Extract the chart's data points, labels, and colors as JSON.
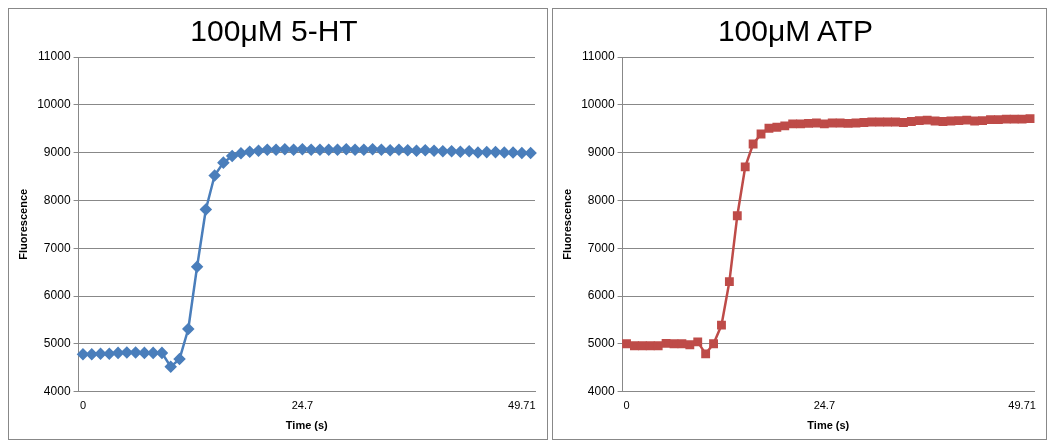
{
  "chart_data": [
    {
      "type": "line",
      "title": "100μM 5-HT",
      "xlabel": "Time (s)",
      "ylabel": "Fluorescence",
      "marker": "diamond",
      "grid": "y",
      "categories": [
        "0",
        null,
        null,
        null,
        null,
        null,
        null,
        null,
        null,
        null,
        null,
        null,
        null,
        null,
        null,
        null,
        null,
        null,
        null,
        null,
        null,
        null,
        null,
        null,
        null,
        "24.7",
        null,
        null,
        null,
        null,
        null,
        null,
        null,
        null,
        null,
        null,
        null,
        null,
        null,
        null,
        null,
        null,
        null,
        null,
        null,
        null,
        null,
        null,
        null,
        null,
        "49.71",
        null
      ],
      "series": [
        {
          "color": "#4a7ebb",
          "values": [
            4780,
            4780,
            4790,
            4790,
            4810,
            4820,
            4820,
            4810,
            4810,
            4810,
            4520,
            4680,
            5310,
            6610,
            7810,
            8520,
            8790,
            8930,
            8985,
            9020,
            9040,
            9060,
            9060,
            9070,
            9060,
            9070,
            9060,
            9060,
            9060,
            9060,
            9070,
            9060,
            9060,
            9070,
            9060,
            9050,
            9060,
            9050,
            9040,
            9050,
            9040,
            9030,
            9030,
            9020,
            9030,
            9000,
            9010,
            9010,
            9000,
            9000,
            8990,
            8990
          ]
        }
      ],
      "ylim": [
        4000,
        11000
      ],
      "yticks": [
        4000,
        5000,
        6000,
        7000,
        8000,
        9000,
        10000,
        11000
      ]
    },
    {
      "type": "line",
      "title": "100μM ATP",
      "xlabel": "Time (s)",
      "ylabel": "Fluorescence",
      "marker": "square",
      "grid": "y",
      "categories": [
        "0",
        null,
        null,
        null,
        null,
        null,
        null,
        null,
        null,
        null,
        null,
        null,
        null,
        null,
        null,
        null,
        null,
        null,
        null,
        null,
        null,
        null,
        null,
        null,
        null,
        "24.7",
        null,
        null,
        null,
        null,
        null,
        null,
        null,
        null,
        null,
        null,
        null,
        null,
        null,
        null,
        null,
        null,
        null,
        null,
        null,
        null,
        null,
        null,
        null,
        null,
        "49.71",
        null
      ],
      "series": [
        {
          "color": "#be4b48",
          "values": [
            5000,
            4960,
            4960,
            4960,
            4960,
            5010,
            5000,
            5000,
            4980,
            5040,
            4790,
            5000,
            5390,
            6300,
            7680,
            8700,
            9180,
            9390,
            9510,
            9530,
            9560,
            9600,
            9600,
            9610,
            9620,
            9600,
            9620,
            9620,
            9610,
            9620,
            9630,
            9640,
            9640,
            9640,
            9640,
            9630,
            9650,
            9670,
            9680,
            9660,
            9650,
            9660,
            9670,
            9680,
            9660,
            9670,
            9690,
            9690,
            9700,
            9700,
            9700,
            9710
          ]
        }
      ],
      "ylim": [
        4000,
        11000
      ],
      "yticks": [
        4000,
        5000,
        6000,
        7000,
        8000,
        9000,
        10000,
        11000
      ]
    }
  ]
}
